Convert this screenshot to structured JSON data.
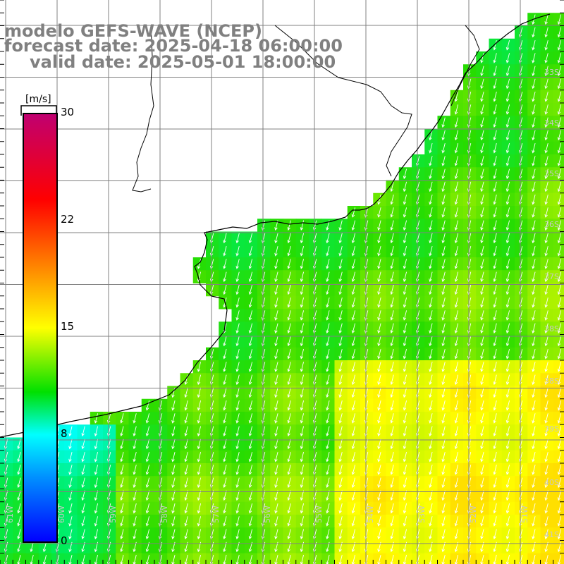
{
  "title": {
    "line1": "modelo GEFS-WAVE (NCEP)",
    "line2": "forecast date: 2025-04-18 06:00:00",
    "line3": "valid date: 2025-05-01 18:00:00"
  },
  "colorbar": {
    "unit": "[m/s]",
    "ticks": [
      "30",
      "22",
      "15",
      "8",
      "0"
    ],
    "tick_values": [
      30,
      22,
      15,
      8,
      0
    ],
    "range": [
      0,
      30
    ],
    "colors": [
      "#0000ff",
      "#0090ff",
      "#00ffff",
      "#00e000",
      "#ffff00",
      "#ff7f00",
      "#ff0000",
      "#c00070"
    ]
  },
  "map": {
    "lon_labels": [
      "61W",
      "60W",
      "59W",
      "58W",
      "57W",
      "56W",
      "55W",
      "54W",
      "53W",
      "52W",
      "51W"
    ],
    "lat_labels": [
      "33S",
      "34S",
      "35S",
      "36S",
      "37S",
      "38S",
      "39S",
      "40S",
      "41S"
    ],
    "land_color": "#ffffff",
    "grid_color": "#808080",
    "coast_color": "#000000",
    "arrow_color": "#ffffff",
    "wind_direction": "from north-northeast"
  }
}
